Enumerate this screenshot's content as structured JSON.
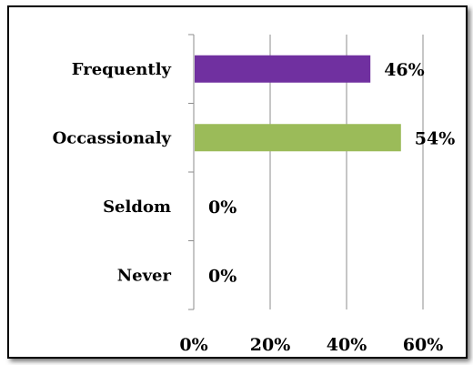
{
  "chart_data": {
    "type": "bar",
    "orientation": "horizontal",
    "categories": [
      "Frequently",
      "Occassionaly",
      "Seldom",
      "Never"
    ],
    "values": [
      46,
      54,
      0,
      0
    ],
    "data_labels": [
      "46%",
      "54%",
      "0%",
      "0%"
    ],
    "bar_colors": [
      "#7030a0",
      "#9bbb59",
      "#7030a0",
      "#7030a0"
    ],
    "xlim": [
      0,
      60
    ],
    "x_ticks": [
      "0%",
      "20%",
      "40%",
      "60%"
    ],
    "grid": true,
    "legend": "none"
  }
}
